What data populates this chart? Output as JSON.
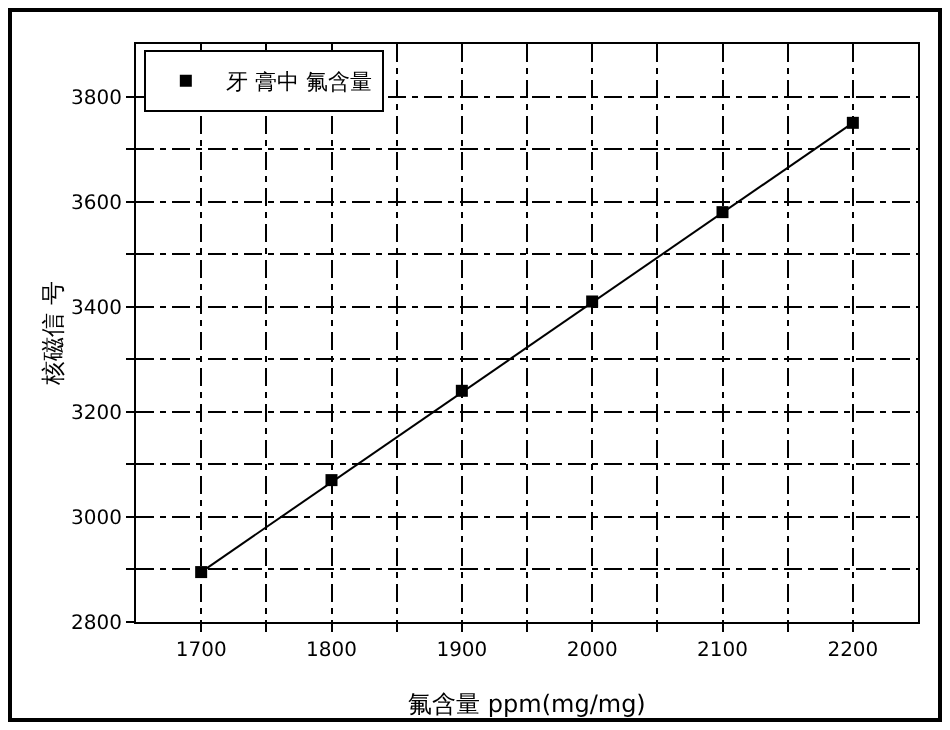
{
  "chart_data": {
    "type": "scatter",
    "xlabel": "氟含量 ppm(mg/mg)",
    "ylabel": "核磁信 号",
    "x": [
      1700,
      1800,
      1900,
      2000,
      2100,
      2200
    ],
    "series": [
      {
        "name": "牙 膏中 氟含量",
        "color": "#000000",
        "values": [
          2895,
          3070,
          3240,
          3410,
          3580,
          3750
        ],
        "marker": "square"
      },
      {
        "type": "line",
        "color": "#000000",
        "x": [
          1700,
          2200
        ],
        "values": [
          2895,
          3750
        ],
        "marker": "none",
        "line_style": "solid"
      }
    ],
    "xlim": [
      1650,
      2250
    ],
    "xticks": [
      1700,
      {
        "value": 1750,
        "label": null
      },
      1800,
      {
        "value": 1850,
        "label": null
      },
      1900,
      {
        "value": 1950,
        "label": null
      },
      2000,
      {
        "value": 2050,
        "label": null
      },
      2100,
      {
        "value": 2150,
        "label": null
      },
      2200
    ],
    "ylim": [
      2800,
      3900
    ],
    "yticks": [
      2800,
      {
        "value": 2900,
        "label": null
      },
      3000,
      {
        "value": 3100,
        "label": null
      },
      3200,
      {
        "value": 3300,
        "label": null
      },
      3400,
      {
        "value": 3500,
        "label": null
      },
      3600,
      {
        "value": 3700,
        "label": null
      },
      3800
    ],
    "grid": true,
    "legend": "top left"
  }
}
